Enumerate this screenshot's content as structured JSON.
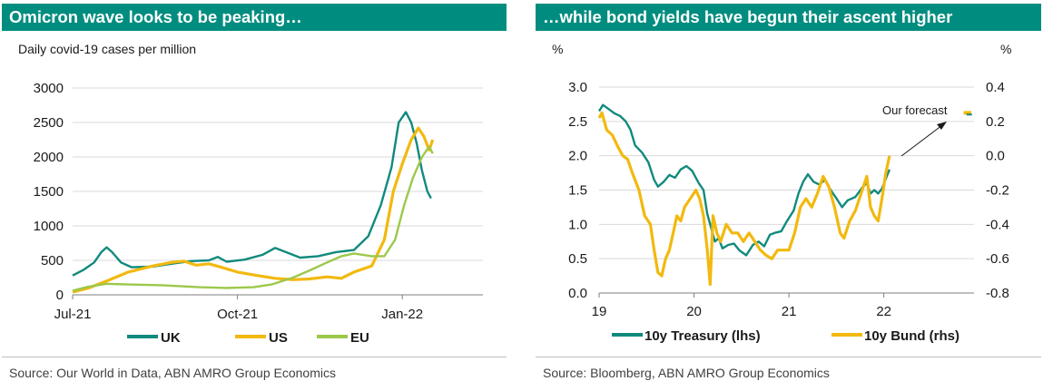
{
  "chart_data": [
    {
      "type": "line",
      "title": "Omicron wave looks to be peaking…",
      "subtitle": "Daily covid-19 cases per million",
      "source": "Source: Our World in Data, ABN AMRO Group Economics",
      "ylim": [
        0,
        3000
      ],
      "yticks": [
        "0",
        "500",
        "1000",
        "1500",
        "2000",
        "2500",
        "3000"
      ],
      "xlim": [
        "2021-07-01",
        "2022-02-15"
      ],
      "xticks": [
        {
          "label": "Jul-21",
          "date": "2021-07-01"
        },
        {
          "label": "Oct-21",
          "date": "2021-10-01"
        },
        {
          "label": "Jan-22",
          "date": "2022-01-01"
        }
      ],
      "legend_position": "bottom",
      "grid": "horizontal",
      "series": [
        {
          "name": "UK",
          "color": "#108a7d",
          "points": [
            [
              "2021-07-01",
              280
            ],
            [
              "2021-07-07",
              360
            ],
            [
              "2021-07-13",
              470
            ],
            [
              "2021-07-17",
              620
            ],
            [
              "2021-07-20",
              690
            ],
            [
              "2021-07-23",
              620
            ],
            [
              "2021-07-28",
              470
            ],
            [
              "2021-08-03",
              400
            ],
            [
              "2021-08-15",
              410
            ],
            [
              "2021-08-25",
              450
            ],
            [
              "2021-09-05",
              490
            ],
            [
              "2021-09-15",
              500
            ],
            [
              "2021-09-20",
              550
            ],
            [
              "2021-09-25",
              480
            ],
            [
              "2021-10-05",
              510
            ],
            [
              "2021-10-15",
              580
            ],
            [
              "2021-10-22",
              680
            ],
            [
              "2021-10-28",
              620
            ],
            [
              "2021-11-05",
              540
            ],
            [
              "2021-11-15",
              560
            ],
            [
              "2021-11-25",
              620
            ],
            [
              "2021-12-05",
              650
            ],
            [
              "2021-12-13",
              850
            ],
            [
              "2021-12-20",
              1300
            ],
            [
              "2021-12-26",
              1850
            ],
            [
              "2021-12-30",
              2500
            ],
            [
              "2022-01-03",
              2650
            ],
            [
              "2022-01-06",
              2500
            ],
            [
              "2022-01-09",
              2200
            ],
            [
              "2022-01-12",
              1800
            ],
            [
              "2022-01-15",
              1500
            ],
            [
              "2022-01-17",
              1400
            ]
          ]
        },
        {
          "name": "US",
          "color": "#f2b90f",
          "points": [
            [
              "2021-07-01",
              40
            ],
            [
              "2021-07-10",
              100
            ],
            [
              "2021-07-20",
              200
            ],
            [
              "2021-08-01",
              330
            ],
            [
              "2021-08-15",
              420
            ],
            [
              "2021-08-25",
              470
            ],
            [
              "2021-09-01",
              490
            ],
            [
              "2021-09-08",
              430
            ],
            [
              "2021-09-15",
              450
            ],
            [
              "2021-09-22",
              400
            ],
            [
              "2021-10-01",
              330
            ],
            [
              "2021-10-12",
              280
            ],
            [
              "2021-10-22",
              240
            ],
            [
              "2021-11-01",
              220
            ],
            [
              "2021-11-10",
              230
            ],
            [
              "2021-11-20",
              260
            ],
            [
              "2021-11-28",
              240
            ],
            [
              "2021-12-05",
              330
            ],
            [
              "2021-12-15",
              420
            ],
            [
              "2021-12-22",
              800
            ],
            [
              "2021-12-27",
              1500
            ],
            [
              "2022-01-01",
              1900
            ],
            [
              "2022-01-06",
              2250
            ],
            [
              "2022-01-10",
              2420
            ],
            [
              "2022-01-13",
              2300
            ],
            [
              "2022-01-16",
              2100
            ],
            [
              "2022-01-18",
              2250
            ]
          ]
        },
        {
          "name": "EU",
          "color": "#9cc84b",
          "points": [
            [
              "2021-07-01",
              60
            ],
            [
              "2021-07-10",
              120
            ],
            [
              "2021-07-20",
              160
            ],
            [
              "2021-08-01",
              150
            ],
            [
              "2021-08-20",
              140
            ],
            [
              "2021-09-10",
              110
            ],
            [
              "2021-09-25",
              100
            ],
            [
              "2021-10-10",
              110
            ],
            [
              "2021-10-20",
              150
            ],
            [
              "2021-11-01",
              250
            ],
            [
              "2021-11-10",
              350
            ],
            [
              "2021-11-20",
              470
            ],
            [
              "2021-11-28",
              560
            ],
            [
              "2021-12-05",
              600
            ],
            [
              "2021-12-15",
              560
            ],
            [
              "2021-12-22",
              560
            ],
            [
              "2021-12-28",
              800
            ],
            [
              "2022-01-02",
              1300
            ],
            [
              "2022-01-07",
              1700
            ],
            [
              "2022-01-12",
              2000
            ],
            [
              "2022-01-16",
              2150
            ],
            [
              "2022-01-18",
              2050
            ]
          ]
        }
      ]
    },
    {
      "type": "line",
      "title": "…while bond yields have begun their ascent higher",
      "source": "Source: Bloomberg, ABN AMRO Group Economics",
      "ylabel_left": "%",
      "ylabel_right": "%",
      "ylim_left": [
        0,
        3
      ],
      "ylim_right": [
        -0.8,
        0.4
      ],
      "yticks_left": [
        "0.0",
        "0.5",
        "1.0",
        "1.5",
        "2.0",
        "2.5",
        "3.0"
      ],
      "yticks_right": [
        "-0.8",
        "-0.6",
        "-0.4",
        "-0.2",
        "0.0",
        "0.2",
        "0.4"
      ],
      "xlim": [
        2019.0,
        2022.95
      ],
      "xticks": [
        {
          "label": "19",
          "x": 2019
        },
        {
          "label": "20",
          "x": 2020
        },
        {
          "label": "21",
          "x": 2021
        },
        {
          "label": "22",
          "x": 2022
        }
      ],
      "legend_position": "bottom",
      "grid": "horizontal",
      "annotation": {
        "text": "Our forecast",
        "point": [
          2022.9,
          2.6
        ]
      },
      "series": [
        {
          "name": "10y Treasury (lhs)",
          "axis": "left",
          "color": "#108a7d",
          "points": [
            [
              2019.0,
              2.65
            ],
            [
              2019.04,
              2.74
            ],
            [
              2019.1,
              2.68
            ],
            [
              2019.16,
              2.62
            ],
            [
              2019.22,
              2.58
            ],
            [
              2019.28,
              2.5
            ],
            [
              2019.33,
              2.38
            ],
            [
              2019.38,
              2.15
            ],
            [
              2019.45,
              2.05
            ],
            [
              2019.52,
              1.9
            ],
            [
              2019.58,
              1.65
            ],
            [
              2019.62,
              1.55
            ],
            [
              2019.68,
              1.62
            ],
            [
              2019.74,
              1.72
            ],
            [
              2019.8,
              1.68
            ],
            [
              2019.86,
              1.8
            ],
            [
              2019.92,
              1.85
            ],
            [
              2019.98,
              1.78
            ],
            [
              2020.05,
              1.6
            ],
            [
              2020.1,
              1.5
            ],
            [
              2020.14,
              1.15
            ],
            [
              2020.18,
              0.95
            ],
            [
              2020.22,
              0.75
            ],
            [
              2020.26,
              0.8
            ],
            [
              2020.3,
              0.65
            ],
            [
              2020.36,
              0.7
            ],
            [
              2020.42,
              0.72
            ],
            [
              2020.48,
              0.62
            ],
            [
              2020.55,
              0.55
            ],
            [
              2020.62,
              0.7
            ],
            [
              2020.68,
              0.75
            ],
            [
              2020.74,
              0.68
            ],
            [
              2020.8,
              0.85
            ],
            [
              2020.86,
              0.88
            ],
            [
              2020.92,
              0.9
            ],
            [
              2020.98,
              1.05
            ],
            [
              2021.05,
              1.2
            ],
            [
              2021.1,
              1.45
            ],
            [
              2021.15,
              1.62
            ],
            [
              2021.2,
              1.73
            ],
            [
              2021.26,
              1.62
            ],
            [
              2021.32,
              1.58
            ],
            [
              2021.38,
              1.65
            ],
            [
              2021.44,
              1.5
            ],
            [
              2021.5,
              1.38
            ],
            [
              2021.56,
              1.25
            ],
            [
              2021.62,
              1.35
            ],
            [
              2021.7,
              1.4
            ],
            [
              2021.78,
              1.55
            ],
            [
              2021.82,
              1.6
            ],
            [
              2021.86,
              1.45
            ],
            [
              2021.9,
              1.5
            ],
            [
              2021.94,
              1.45
            ],
            [
              2021.98,
              1.52
            ],
            [
              2022.03,
              1.7
            ],
            [
              2022.06,
              1.8
            ]
          ]
        },
        {
          "name": "10y Bund (rhs)",
          "axis": "right",
          "color": "#f2b90f",
          "points": [
            [
              2019.0,
              0.22
            ],
            [
              2019.03,
              0.25
            ],
            [
              2019.08,
              0.15
            ],
            [
              2019.14,
              0.12
            ],
            [
              2019.2,
              0.05
            ],
            [
              2019.25,
              0.0
            ],
            [
              2019.3,
              -0.02
            ],
            [
              2019.35,
              -0.1
            ],
            [
              2019.42,
              -0.2
            ],
            [
              2019.48,
              -0.35
            ],
            [
              2019.54,
              -0.4
            ],
            [
              2019.58,
              -0.55
            ],
            [
              2019.62,
              -0.68
            ],
            [
              2019.66,
              -0.7
            ],
            [
              2019.7,
              -0.6
            ],
            [
              2019.74,
              -0.55
            ],
            [
              2019.78,
              -0.45
            ],
            [
              2019.82,
              -0.35
            ],
            [
              2019.86,
              -0.38
            ],
            [
              2019.9,
              -0.3
            ],
            [
              2019.96,
              -0.25
            ],
            [
              2020.02,
              -0.2
            ],
            [
              2020.06,
              -0.25
            ],
            [
              2020.1,
              -0.35
            ],
            [
              2020.14,
              -0.55
            ],
            [
              2020.17,
              -0.75
            ],
            [
              2020.2,
              -0.35
            ],
            [
              2020.24,
              -0.45
            ],
            [
              2020.28,
              -0.5
            ],
            [
              2020.34,
              -0.4
            ],
            [
              2020.4,
              -0.45
            ],
            [
              2020.46,
              -0.45
            ],
            [
              2020.52,
              -0.5
            ],
            [
              2020.58,
              -0.45
            ],
            [
              2020.64,
              -0.5
            ],
            [
              2020.7,
              -0.55
            ],
            [
              2020.76,
              -0.58
            ],
            [
              2020.82,
              -0.6
            ],
            [
              2020.88,
              -0.55
            ],
            [
              2020.94,
              -0.55
            ],
            [
              2021.0,
              -0.55
            ],
            [
              2021.06,
              -0.45
            ],
            [
              2021.12,
              -0.3
            ],
            [
              2021.18,
              -0.25
            ],
            [
              2021.24,
              -0.3
            ],
            [
              2021.3,
              -0.22
            ],
            [
              2021.36,
              -0.12
            ],
            [
              2021.42,
              -0.18
            ],
            [
              2021.48,
              -0.3
            ],
            [
              2021.54,
              -0.45
            ],
            [
              2021.58,
              -0.48
            ],
            [
              2021.64,
              -0.38
            ],
            [
              2021.7,
              -0.32
            ],
            [
              2021.76,
              -0.22
            ],
            [
              2021.82,
              -0.12
            ],
            [
              2021.86,
              -0.3
            ],
            [
              2021.9,
              -0.35
            ],
            [
              2021.94,
              -0.38
            ],
            [
              2021.98,
              -0.25
            ],
            [
              2022.02,
              -0.1
            ],
            [
              2022.06,
              0.0
            ],
            [
              2022.84,
              0.25
            ],
            [
              2022.92,
              0.25
            ]
          ]
        }
      ]
    }
  ]
}
